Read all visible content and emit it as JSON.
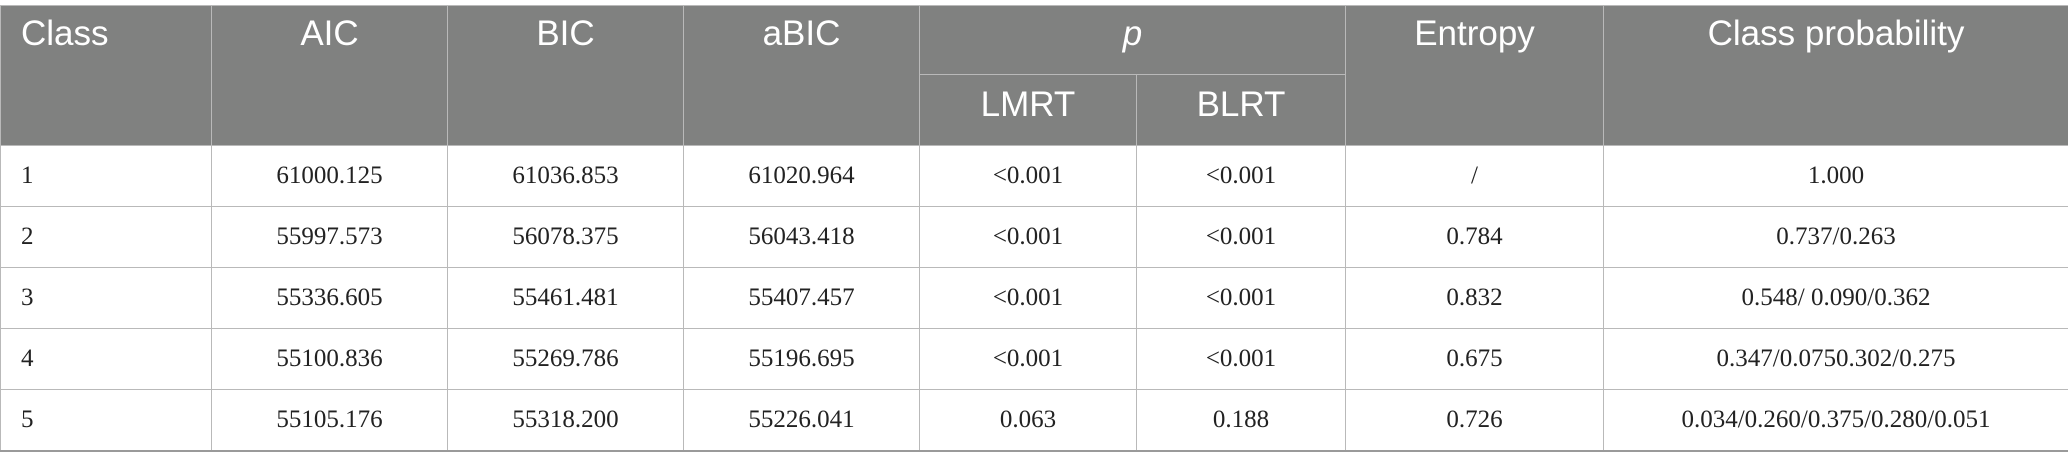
{
  "header": {
    "class": "Class",
    "aic": "AIC",
    "bic": "BIC",
    "abic": "aBIC",
    "p": "p",
    "lmrt": "LMRT",
    "blrt": "BLRT",
    "entropy": "Entropy",
    "class_probability": "Class probability"
  },
  "rows": [
    {
      "class": "1",
      "aic": "61000.125",
      "bic": "61036.853",
      "abic": "61020.964",
      "lmrt": "<0.001",
      "blrt": "<0.001",
      "entropy": "/",
      "prob": "1.000"
    },
    {
      "class": "2",
      "aic": "55997.573",
      "bic": "56078.375",
      "abic": "56043.418",
      "lmrt": "<0.001",
      "blrt": "<0.001",
      "entropy": "0.784",
      "prob": "0.737/0.263"
    },
    {
      "class": "3",
      "aic": "55336.605",
      "bic": "55461.481",
      "abic": "55407.457",
      "lmrt": "<0.001",
      "blrt": "<0.001",
      "entropy": "0.832",
      "prob": "0.548/ 0.090/0.362"
    },
    {
      "class": "4",
      "aic": "55100.836",
      "bic": "55269.786",
      "abic": "55196.695",
      "lmrt": "<0.001",
      "blrt": "<0.001",
      "entropy": "0.675",
      "prob": "0.347/0.0750.302/0.275"
    },
    {
      "class": "5",
      "aic": "55105.176",
      "bic": "55318.200",
      "abic": "55226.041",
      "lmrt": "0.063",
      "blrt": "0.188",
      "entropy": "0.726",
      "prob": "0.034/0.260/0.375/0.280/0.051"
    }
  ]
}
